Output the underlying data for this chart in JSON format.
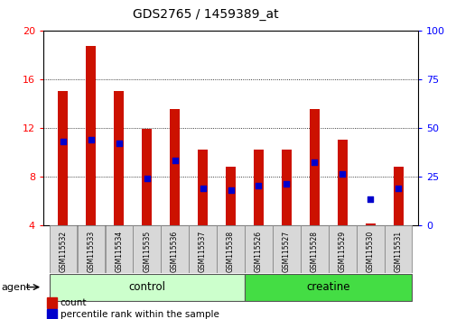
{
  "title": "GDS2765 / 1459389_at",
  "samples": [
    "GSM115532",
    "GSM115533",
    "GSM115534",
    "GSM115535",
    "GSM115536",
    "GSM115537",
    "GSM115538",
    "GSM115526",
    "GSM115527",
    "GSM115528",
    "GSM115529",
    "GSM115530",
    "GSM115531"
  ],
  "n_control": 7,
  "n_creatine": 6,
  "count_values": [
    15.0,
    18.7,
    15.0,
    11.9,
    13.5,
    10.2,
    8.8,
    10.2,
    10.2,
    13.5,
    11.0,
    4.1,
    8.8
  ],
  "count_base": 4.0,
  "percentile_values": [
    43.0,
    44.0,
    42.0,
    24.0,
    33.0,
    19.0,
    18.0,
    20.0,
    21.0,
    32.0,
    26.0,
    13.0,
    19.0
  ],
  "ylim_left": [
    4,
    20
  ],
  "ylim_right": [
    0,
    100
  ],
  "yticks_left": [
    4,
    8,
    12,
    16,
    20
  ],
  "yticks_right": [
    0,
    25,
    50,
    75,
    100
  ],
  "bar_color": "#cc1100",
  "dot_color": "#0000cc",
  "control_color": "#ccffcc",
  "creatine_color": "#44dd44",
  "bar_width": 0.35,
  "legend": [
    "count",
    "percentile rank within the sample"
  ]
}
